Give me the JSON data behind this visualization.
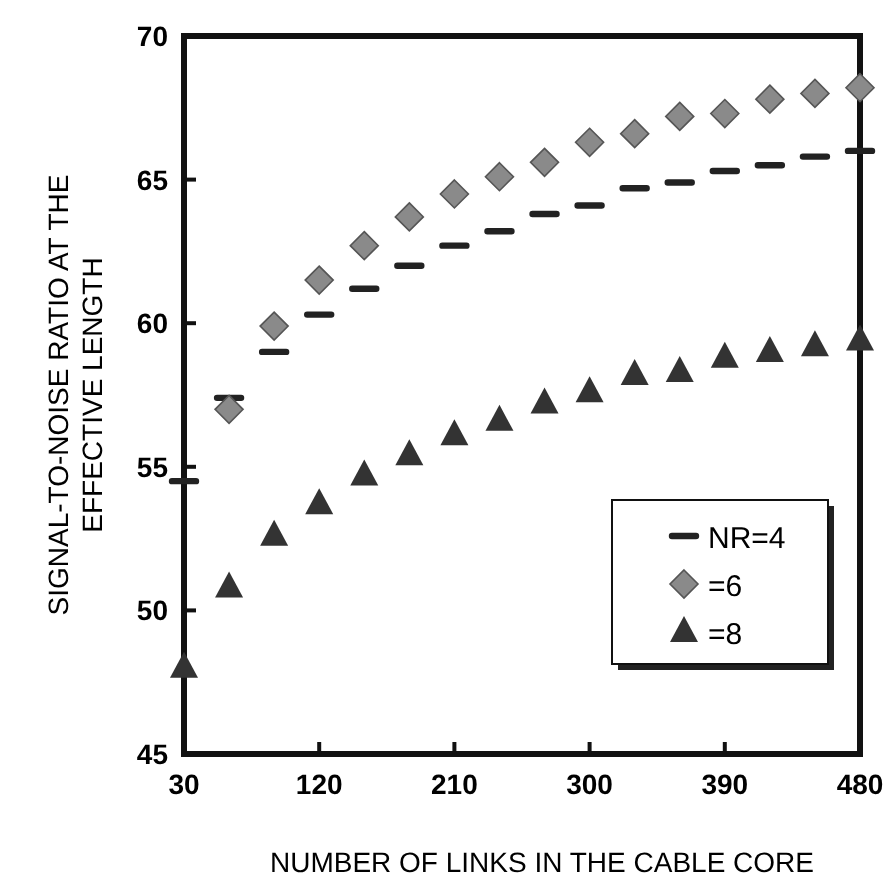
{
  "chart_data": {
    "type": "scatter",
    "xlabel": "NUMBER OF LINKS IN THE CABLE CORE",
    "ylabel": "SIGNAL-TO-NOISE RATIO AT THE\nEFFECTIVE LENGTH",
    "x": [
      30,
      60,
      90,
      120,
      150,
      180,
      210,
      240,
      270,
      300,
      330,
      360,
      390,
      420,
      450,
      480
    ],
    "xlim": [
      30,
      480
    ],
    "xticks": [
      30,
      120,
      210,
      300,
      390,
      480
    ],
    "ylim": [
      45,
      70
    ],
    "yticks": [
      45,
      50,
      55,
      60,
      65,
      70
    ],
    "grid": false,
    "legend": "bottom right",
    "series": [
      {
        "name": "NR=4",
        "color": "#222222",
        "values": [
          54.5,
          57.4,
          59.0,
          60.3,
          61.2,
          62.0,
          62.7,
          63.2,
          63.8,
          64.1,
          64.7,
          64.9,
          65.3,
          65.5,
          65.8,
          66.0
        ]
      },
      {
        "name": "=6",
        "color": "#8a8a8a",
        "marker": "diamond",
        "values": [
          null,
          57.0,
          59.9,
          61.5,
          62.7,
          63.7,
          64.5,
          65.1,
          65.6,
          66.3,
          66.6,
          67.2,
          67.3,
          67.8,
          68.0,
          68.2
        ]
      },
      {
        "name": "=8",
        "color": "#333333",
        "marker": "triangle",
        "values": [
          48.0,
          50.8,
          52.6,
          53.7,
          54.7,
          55.4,
          56.1,
          56.6,
          57.2,
          57.6,
          58.2,
          58.3,
          58.8,
          59.0,
          59.2,
          59.4
        ]
      }
    ]
  }
}
